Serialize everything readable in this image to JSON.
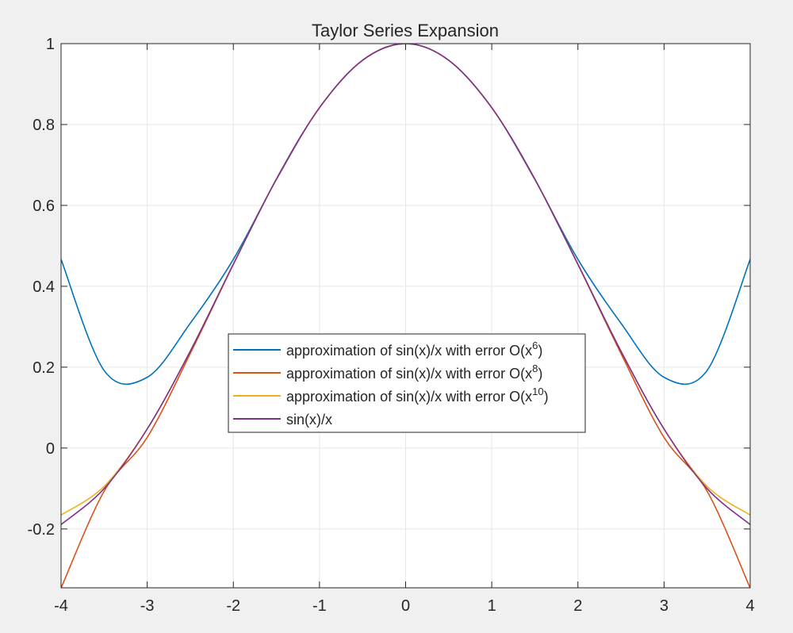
{
  "chart_data": {
    "type": "line",
    "title": "Taylor Series Expansion",
    "xlabel": "",
    "ylabel": "",
    "xlim": [
      -4,
      4
    ],
    "ylim": [
      -0.3455,
      1
    ],
    "xticks": [
      -4,
      -3,
      -2,
      -1,
      0,
      1,
      2,
      3,
      4
    ],
    "xtick_labels": [
      "-4",
      "-3",
      "-2",
      "-1",
      "0",
      "1",
      "2",
      "3",
      "4"
    ],
    "yticks": [
      -0.2,
      0,
      0.2,
      0.4,
      0.6,
      0.8,
      1
    ],
    "ytick_labels": [
      "-0.2",
      "0",
      "0.2",
      "0.4",
      "0.6",
      "0.8",
      "1"
    ],
    "grid": true,
    "legend_position": "center",
    "x": [
      -4,
      -3.5,
      -3,
      -2.5,
      -2,
      -1.5,
      -1,
      -0.5,
      0,
      0.5,
      1,
      1.5,
      2,
      2.5,
      3,
      3.5,
      4
    ],
    "series": [
      {
        "legend": {
          "prefix": "approximation of sin(x)/x with error O(x",
          "sup": "6",
          "suffix": ")"
        },
        "color": "#0072BD",
        "values": [
          0.4667,
          0.1918,
          0.175,
          0.3086,
          0.4667,
          0.6641,
          0.8417,
          0.9589,
          1,
          0.9589,
          0.8417,
          0.6641,
          0.4667,
          0.3086,
          0.175,
          0.1918,
          0.4667
        ]
      },
      {
        "legend": {
          "prefix": "approximation of sin(x)/x with error O(x",
          "sup": "8",
          "suffix": ")"
        },
        "color": "#D95319",
        "values": [
          -0.346,
          -0.1067,
          0.0263,
          0.2339,
          0.454,
          0.665,
          0.8415,
          0.9589,
          1,
          0.9589,
          0.8415,
          0.665,
          0.454,
          0.2339,
          0.0263,
          -0.1067,
          -0.346
        ]
      },
      {
        "legend": {
          "prefix": "approximation of sin(x)/x with error O(x",
          "sup": "10",
          "suffix": ")"
        },
        "color": "#EDB120",
        "values": [
          -0.1657,
          -0.0948,
          0.0476,
          0.24,
          0.4547,
          0.665,
          0.8415,
          0.9589,
          1,
          0.9589,
          0.8415,
          0.665,
          0.4547,
          0.24,
          0.0476,
          -0.0948,
          -0.1657
        ]
      },
      {
        "legend": {
          "prefix": "sin(x)/x",
          "sup": "",
          "suffix": ""
        },
        "color": "#7E2F8E",
        "values": [
          -0.1892,
          -0.1002,
          0.047,
          0.2394,
          0.4546,
          0.665,
          0.8415,
          0.9589,
          1,
          0.9589,
          0.8415,
          0.665,
          0.4546,
          0.2394,
          0.047,
          -0.1002,
          -0.1892
        ]
      }
    ]
  }
}
